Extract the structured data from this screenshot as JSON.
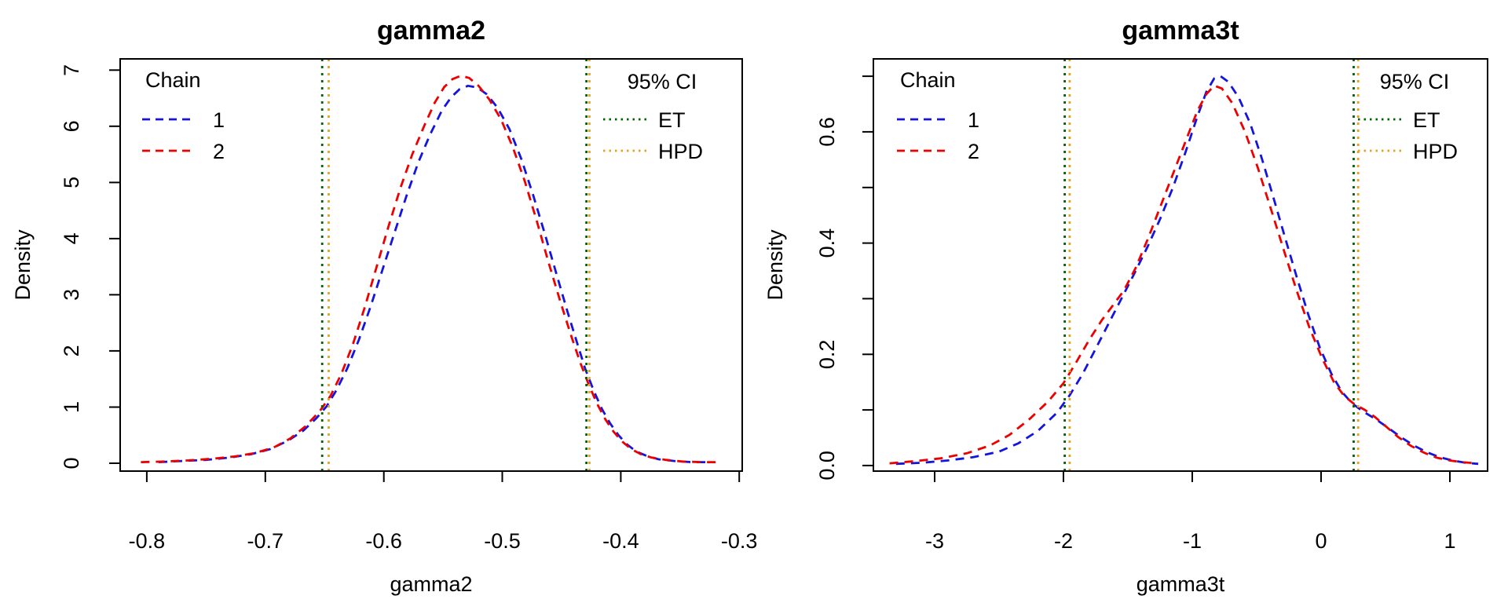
{
  "figure": {
    "background": "#ffffff"
  },
  "colors": {
    "chain1": "#1414DD",
    "chain2": "#EE0000",
    "et": "#006400",
    "hpd": "#E8A020",
    "axis": "#000000"
  },
  "chart_data": [
    {
      "type": "line",
      "title": "gamma2",
      "xlabel": "gamma2",
      "ylabel": "Density",
      "grid": false,
      "xlim": [
        -0.8225,
        -0.2975
      ],
      "ylim": [
        -0.14,
        7.2
      ],
      "xticks": [
        -0.8,
        -0.7,
        -0.6,
        -0.5,
        -0.4,
        -0.3
      ],
      "xtick_labels": [
        "-0.8",
        "-0.7",
        "-0.6",
        "-0.5",
        "-0.4",
        "-0.3"
      ],
      "yticks": [
        0,
        1,
        2,
        3,
        4,
        5,
        6,
        7
      ],
      "ytick_labels": [
        "0",
        "1",
        "2",
        "3",
        "4",
        "5",
        "6",
        "7"
      ],
      "legend_chain": {
        "title": "Chain",
        "position": "top-left",
        "entries": [
          {
            "label": "1",
            "color_key": "chain1",
            "linetype": "dashed"
          },
          {
            "label": "2",
            "color_key": "chain2",
            "linetype": "dashed"
          }
        ]
      },
      "legend_ci": {
        "title": "95% CI",
        "position": "top-right",
        "entries": [
          {
            "label": "ET",
            "color_key": "et",
            "linetype": "dotted"
          },
          {
            "label": "HPD",
            "color_key": "hpd",
            "linetype": "dotted"
          }
        ]
      },
      "ci_lines": {
        "ET": [
          -0.652,
          -0.429
        ],
        "HPD": [
          -0.6465,
          -0.4265
        ]
      },
      "series": [
        {
          "name": "1",
          "color_key": "chain1",
          "linetype": "dashed",
          "points": [
            [
              -0.79,
              0.02
            ],
            [
              -0.77,
              0.04
            ],
            [
              -0.75,
              0.06
            ],
            [
              -0.73,
              0.1
            ],
            [
              -0.712,
              0.16
            ],
            [
              -0.696,
              0.25
            ],
            [
              -0.681,
              0.4
            ],
            [
              -0.668,
              0.58
            ],
            [
              -0.657,
              0.8
            ],
            [
              -0.648,
              1.02
            ],
            [
              -0.64,
              1.3
            ],
            [
              -0.631,
              1.68
            ],
            [
              -0.621,
              2.2
            ],
            [
              -0.611,
              2.8
            ],
            [
              -0.601,
              3.45
            ],
            [
              -0.591,
              4.1
            ],
            [
              -0.581,
              4.75
            ],
            [
              -0.571,
              5.35
            ],
            [
              -0.561,
              5.85
            ],
            [
              -0.551,
              6.28
            ],
            [
              -0.543,
              6.52
            ],
            [
              -0.536,
              6.66
            ],
            [
              -0.529,
              6.72
            ],
            [
              -0.521,
              6.69
            ],
            [
              -0.513,
              6.57
            ],
            [
              -0.504,
              6.33
            ],
            [
              -0.494,
              5.95
            ],
            [
              -0.484,
              5.42
            ],
            [
              -0.474,
              4.78
            ],
            [
              -0.464,
              4.08
            ],
            [
              -0.454,
              3.35
            ],
            [
              -0.445,
              2.7
            ],
            [
              -0.437,
              2.15
            ],
            [
              -0.43,
              1.68
            ],
            [
              -0.423,
              1.3
            ],
            [
              -0.416,
              0.97
            ],
            [
              -0.409,
              0.71
            ],
            [
              -0.402,
              0.5
            ],
            [
              -0.395,
              0.34
            ],
            [
              -0.387,
              0.21
            ],
            [
              -0.378,
              0.13
            ],
            [
              -0.368,
              0.07
            ],
            [
              -0.355,
              0.04
            ],
            [
              -0.34,
              0.02
            ],
            [
              -0.325,
              0.02
            ]
          ]
        },
        {
          "name": "2",
          "color_key": "chain2",
          "linetype": "dashed",
          "points": [
            [
              -0.805,
              0.02
            ],
            [
              -0.785,
              0.03
            ],
            [
              -0.765,
              0.05
            ],
            [
              -0.745,
              0.08
            ],
            [
              -0.726,
              0.12
            ],
            [
              -0.709,
              0.18
            ],
            [
              -0.693,
              0.28
            ],
            [
              -0.679,
              0.44
            ],
            [
              -0.666,
              0.66
            ],
            [
              -0.654,
              0.93
            ],
            [
              -0.645,
              1.2
            ],
            [
              -0.636,
              1.58
            ],
            [
              -0.626,
              2.12
            ],
            [
              -0.616,
              2.78
            ],
            [
              -0.606,
              3.5
            ],
            [
              -0.596,
              4.22
            ],
            [
              -0.586,
              4.9
            ],
            [
              -0.576,
              5.5
            ],
            [
              -0.566,
              6.0
            ],
            [
              -0.557,
              6.42
            ],
            [
              -0.549,
              6.7
            ],
            [
              -0.542,
              6.84
            ],
            [
              -0.535,
              6.9
            ],
            [
              -0.528,
              6.86
            ],
            [
              -0.52,
              6.72
            ],
            [
              -0.511,
              6.48
            ],
            [
              -0.501,
              6.12
            ],
            [
              -0.491,
              5.62
            ],
            [
              -0.481,
              5.02
            ],
            [
              -0.471,
              4.32
            ],
            [
              -0.461,
              3.58
            ],
            [
              -0.451,
              2.88
            ],
            [
              -0.442,
              2.28
            ],
            [
              -0.434,
              1.78
            ],
            [
              -0.427,
              1.4
            ],
            [
              -0.42,
              1.06
            ],
            [
              -0.413,
              0.78
            ],
            [
              -0.406,
              0.56
            ],
            [
              -0.399,
              0.39
            ],
            [
              -0.391,
              0.25
            ],
            [
              -0.383,
              0.16
            ],
            [
              -0.374,
              0.1
            ],
            [
              -0.362,
              0.06
            ],
            [
              -0.348,
              0.03
            ],
            [
              -0.332,
              0.02
            ],
            [
              -0.318,
              0.02
            ]
          ]
        }
      ]
    },
    {
      "type": "line",
      "title": "gamma3t",
      "xlabel": "gamma3t",
      "ylabel": "Density",
      "grid": false,
      "xlim": [
        -3.4756,
        1.2927
      ],
      "ylim": [
        -0.01,
        0.7312
      ],
      "xticks": [
        -3,
        -2,
        -1,
        0,
        1
      ],
      "xtick_labels": [
        "-3",
        "-2",
        "-1",
        "0",
        "1"
      ],
      "yticks": [
        0,
        0.1,
        0.2,
        0.3,
        0.4,
        0.5,
        0.6,
        0.7
      ],
      "ytick_labels": [
        "0.0",
        "",
        "0.2",
        "",
        "0.4",
        "",
        "0.6",
        ""
      ],
      "legend_chain": {
        "title": "Chain",
        "position": "top-left",
        "entries": [
          {
            "label": "1",
            "color_key": "chain1",
            "linetype": "dashed"
          },
          {
            "label": "2",
            "color_key": "chain2",
            "linetype": "dashed"
          }
        ]
      },
      "legend_ci": {
        "title": "95% CI",
        "position": "top-right",
        "entries": [
          {
            "label": "ET",
            "color_key": "et",
            "linetype": "dotted"
          },
          {
            "label": "HPD",
            "color_key": "hpd",
            "linetype": "dotted"
          }
        ]
      },
      "ci_lines": {
        "ET": [
          -1.99,
          0.253
        ],
        "HPD": [
          -1.952,
          0.288
        ]
      },
      "series": [
        {
          "name": "1",
          "color_key": "chain1",
          "linetype": "dashed",
          "points": [
            [
              -3.3,
              0.003
            ],
            [
              -3.1,
              0.005
            ],
            [
              -2.9,
              0.009
            ],
            [
              -2.7,
              0.015
            ],
            [
              -2.5,
              0.025
            ],
            [
              -2.35,
              0.04
            ],
            [
              -2.2,
              0.062
            ],
            [
              -2.05,
              0.095
            ],
            [
              -1.95,
              0.127
            ],
            [
              -1.85,
              0.165
            ],
            [
              -1.75,
              0.21
            ],
            [
              -1.65,
              0.255
            ],
            [
              -1.55,
              0.3
            ],
            [
              -1.45,
              0.345
            ],
            [
              -1.35,
              0.392
            ],
            [
              -1.25,
              0.443
            ],
            [
              -1.15,
              0.5
            ],
            [
              -1.05,
              0.565
            ],
            [
              -0.96,
              0.628
            ],
            [
              -0.89,
              0.672
            ],
            [
              -0.83,
              0.696
            ],
            [
              -0.78,
              0.7
            ],
            [
              -0.72,
              0.69
            ],
            [
              -0.64,
              0.662
            ],
            [
              -0.55,
              0.615
            ],
            [
              -0.46,
              0.552
            ],
            [
              -0.37,
              0.482
            ],
            [
              -0.28,
              0.41
            ],
            [
              -0.19,
              0.34
            ],
            [
              -0.1,
              0.272
            ],
            [
              -0.01,
              0.212
            ],
            [
              0.08,
              0.165
            ],
            [
              0.16,
              0.133
            ],
            [
              0.24,
              0.112
            ],
            [
              0.32,
              0.098
            ],
            [
              0.42,
              0.084
            ],
            [
              0.52,
              0.068
            ],
            [
              0.62,
              0.051
            ],
            [
              0.72,
              0.036
            ],
            [
              0.82,
              0.024
            ],
            [
              0.92,
              0.015
            ],
            [
              1.02,
              0.009
            ],
            [
              1.12,
              0.005
            ],
            [
              1.22,
              0.003
            ]
          ]
        },
        {
          "name": "2",
          "color_key": "chain2",
          "linetype": "dashed",
          "points": [
            [
              -3.35,
              0.004
            ],
            [
              -3.15,
              0.008
            ],
            [
              -2.95,
              0.013
            ],
            [
              -2.75,
              0.022
            ],
            [
              -2.57,
              0.036
            ],
            [
              -2.42,
              0.055
            ],
            [
              -2.27,
              0.082
            ],
            [
              -2.12,
              0.115
            ],
            [
              -2.0,
              0.148
            ],
            [
              -1.9,
              0.186
            ],
            [
              -1.8,
              0.226
            ],
            [
              -1.7,
              0.262
            ],
            [
              -1.61,
              0.29
            ],
            [
              -1.53,
              0.315
            ],
            [
              -1.44,
              0.355
            ],
            [
              -1.34,
              0.41
            ],
            [
              -1.24,
              0.47
            ],
            [
              -1.14,
              0.53
            ],
            [
              -1.04,
              0.59
            ],
            [
              -0.96,
              0.638
            ],
            [
              -0.89,
              0.668
            ],
            [
              -0.83,
              0.683
            ],
            [
              -0.77,
              0.678
            ],
            [
              -0.69,
              0.652
            ],
            [
              -0.59,
              0.6
            ],
            [
              -0.49,
              0.535
            ],
            [
              -0.39,
              0.462
            ],
            [
              -0.29,
              0.388
            ],
            [
              -0.19,
              0.315
            ],
            [
              -0.09,
              0.248
            ],
            [
              0.01,
              0.192
            ],
            [
              0.1,
              0.15
            ],
            [
              0.18,
              0.125
            ],
            [
              0.26,
              0.11
            ],
            [
              0.34,
              0.1
            ],
            [
              0.42,
              0.087
            ],
            [
              0.5,
              0.071
            ],
            [
              0.6,
              0.051
            ],
            [
              0.7,
              0.035
            ],
            [
              0.8,
              0.023
            ],
            [
              0.9,
              0.014
            ],
            [
              1.0,
              0.009
            ],
            [
              1.1,
              0.006
            ],
            [
              1.2,
              0.004
            ]
          ]
        }
      ]
    }
  ]
}
